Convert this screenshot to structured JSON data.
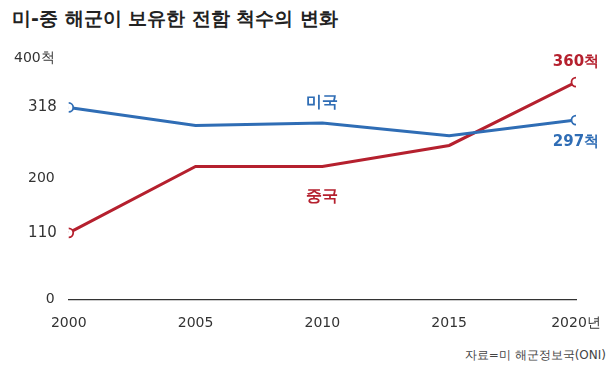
{
  "chart_data": {
    "type": "line",
    "title": "미-중 해군이 보유한 전함 척수의 변화",
    "source": "자료=미 해군정보국(ONI)",
    "categories": [
      "2000",
      "2005",
      "2010",
      "2015",
      "2020년"
    ],
    "series": [
      {
        "name": "미국",
        "color": "#2f6db5",
        "values": [
          318,
          288,
          292,
          271,
          297
        ],
        "value_labels": [
          "318",
          null,
          null,
          null,
          "297척"
        ],
        "marker": "circle"
      },
      {
        "name": "중국",
        "color": "#b5202e",
        "values": [
          110,
          220,
          220,
          255,
          360
        ],
        "value_labels": [
          "110",
          null,
          null,
          null,
          "360척"
        ],
        "marker": "circle"
      }
    ],
    "ylim": [
      0,
      400
    ],
    "yticks": [
      0,
      200,
      {
        "value": 400,
        "label": "400척"
      }
    ],
    "grid": false,
    "data_labels": true
  }
}
